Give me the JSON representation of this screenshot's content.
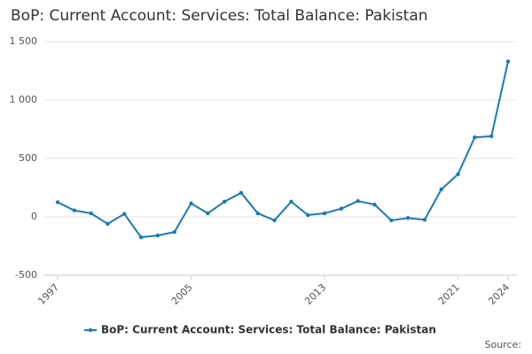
{
  "chart_data": {
    "type": "line",
    "title": "BoP: Current Account: Services: Total Balance: Pakistan",
    "x": [
      1997,
      1998,
      1999,
      2000,
      2001,
      2002,
      2003,
      2004,
      2005,
      2006,
      2007,
      2008,
      2009,
      2010,
      2011,
      2012,
      2013,
      2014,
      2015,
      2016,
      2017,
      2018,
      2019,
      2020,
      2021,
      2022,
      2023,
      2024
    ],
    "series": [
      {
        "name": "BoP: Current Account: Services: Total Balance: Pakistan",
        "color": "#1a7ab5",
        "values": [
          125,
          55,
          30,
          -60,
          25,
          -175,
          -160,
          -130,
          115,
          30,
          130,
          205,
          30,
          -30,
          130,
          15,
          30,
          70,
          135,
          105,
          -30,
          -10,
          -25,
          235,
          365,
          680,
          690,
          1330
        ]
      }
    ],
    "xlim": [
      1997,
      2024
    ],
    "xticks": [
      1997,
      2005,
      2013,
      2021,
      2024
    ],
    "ylim": [
      -500,
      1500
    ],
    "yticks": [
      -500,
      0,
      500,
      {
        "value": 1000,
        "label": "1 000"
      },
      {
        "value": 1500,
        "label": "1 500"
      }
    ],
    "grid": true,
    "legend": "bottom",
    "source": "Source:"
  }
}
